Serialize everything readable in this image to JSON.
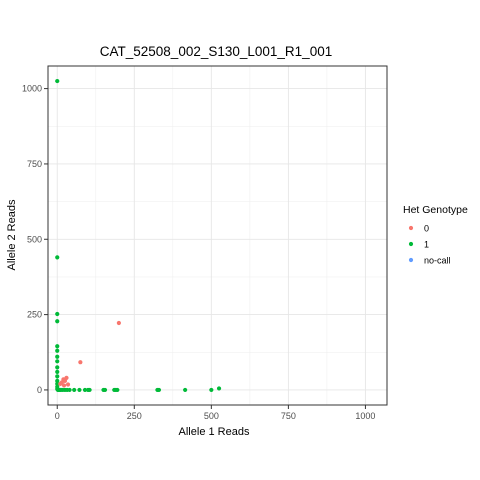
{
  "chart_data": {
    "type": "scatter",
    "title": "CAT_52508_002_S130_L001_R1_001",
    "xlabel": "Allele 1 Reads",
    "ylabel": "Allele 2 Reads",
    "xlim": [
      -30,
      1070
    ],
    "ylim": [
      -50,
      1075
    ],
    "x_ticks": [
      0,
      250,
      500,
      750,
      1000
    ],
    "y_ticks": [
      0,
      250,
      500,
      750,
      1000
    ],
    "x_tick_labels": [
      "0",
      "250",
      "500",
      "750",
      "1000"
    ],
    "y_tick_labels": [
      "0",
      "250",
      "500",
      "750",
      "1000"
    ],
    "grid": true,
    "legend": {
      "title": "Het Genotype",
      "position": "right",
      "entries": [
        {
          "label": "0",
          "color": "#F8766D"
        },
        {
          "label": "1",
          "color": "#00BA38"
        },
        {
          "label": "no-call",
          "color": "#619CFF"
        }
      ]
    },
    "series": [
      {
        "name": "1",
        "color": "#00BA38",
        "points": [
          [
            0,
            1025
          ],
          [
            0,
            440
          ],
          [
            0,
            252
          ],
          [
            0,
            228
          ],
          [
            0,
            145
          ],
          [
            0,
            130
          ],
          [
            0,
            110
          ],
          [
            0,
            95
          ],
          [
            0,
            75
          ],
          [
            0,
            60
          ],
          [
            0,
            45
          ],
          [
            0,
            30
          ],
          [
            0,
            20
          ],
          [
            0,
            10
          ],
          [
            0,
            3
          ],
          [
            2,
            0
          ],
          [
            5,
            0
          ],
          [
            8,
            0
          ],
          [
            12,
            0
          ],
          [
            18,
            0
          ],
          [
            25,
            0
          ],
          [
            32,
            0
          ],
          [
            40,
            0
          ],
          [
            55,
            0
          ],
          [
            72,
            0
          ],
          [
            90,
            0
          ],
          [
            100,
            0
          ],
          [
            105,
            0
          ],
          [
            150,
            0
          ],
          [
            155,
            0
          ],
          [
            185,
            0
          ],
          [
            190,
            0
          ],
          [
            195,
            0
          ],
          [
            325,
            0
          ],
          [
            330,
            0
          ],
          [
            415,
            0
          ],
          [
            500,
            0
          ],
          [
            525,
            5
          ]
        ]
      },
      {
        "name": "0",
        "color": "#F8766D",
        "points": [
          [
            200,
            222
          ],
          [
            75,
            92
          ],
          [
            30,
            40
          ],
          [
            25,
            30
          ],
          [
            20,
            35
          ],
          [
            15,
            25
          ],
          [
            10,
            20
          ],
          [
            22,
            15
          ],
          [
            35,
            18
          ]
        ]
      },
      {
        "name": "no-call",
        "color": "#619CFF",
        "points": []
      }
    ]
  }
}
